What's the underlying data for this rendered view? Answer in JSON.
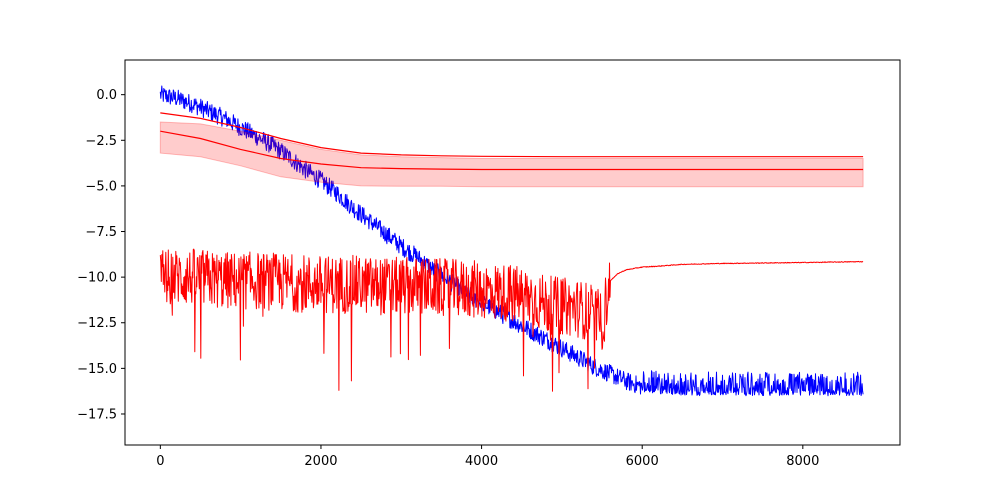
{
  "chart_data": {
    "type": "line",
    "title": "",
    "xlabel": "",
    "ylabel": "",
    "xlim": [
      -440,
      9210
    ],
    "ylim": [
      -19.2,
      1.9
    ],
    "grid": false,
    "x_ticks": [
      {
        "value": 0,
        "label": "0"
      },
      {
        "value": 2000,
        "label": "2000"
      },
      {
        "value": 4000,
        "label": "4000"
      },
      {
        "value": 6000,
        "label": "6000"
      },
      {
        "value": 8000,
        "label": "8000"
      }
    ],
    "y_ticks": [
      {
        "value": 0,
        "label": "0.0"
      },
      {
        "value": -2.5,
        "label": "−2.5"
      },
      {
        "value": -5,
        "label": "−5.0"
      },
      {
        "value": -7.5,
        "label": "−7.5"
      },
      {
        "value": -10,
        "label": "−10.0"
      },
      {
        "value": -12.5,
        "label": "−12.5"
      },
      {
        "value": -15,
        "label": "−15.0"
      },
      {
        "value": -17.5,
        "label": "−17.5"
      }
    ],
    "colors": {
      "blue_series": "#0000ff",
      "red_series": "#ff0000",
      "band_fill": "#ff0000"
    },
    "series": [
      {
        "kind": "line-noisy",
        "color": "#0000ff",
        "x": [
          0,
          200,
          400,
          600,
          800,
          1000,
          1200,
          1400,
          1600,
          1800,
          2000,
          2200,
          2400,
          2600,
          2800,
          3000,
          3200,
          3400,
          3600,
          3800,
          4000,
          4200,
          4400,
          4600,
          4800,
          5000,
          5200,
          5400,
          5600,
          5800,
          6000,
          6200,
          6600,
          7000,
          7400,
          7800,
          8200,
          8750
        ],
        "y": [
          0.0,
          -0.2,
          -0.5,
          -0.9,
          -1.3,
          -1.8,
          -2.3,
          -2.8,
          -3.4,
          -4.1,
          -4.7,
          -5.4,
          -6.2,
          -6.9,
          -7.6,
          -8.3,
          -8.9,
          -9.6,
          -10.2,
          -10.9,
          -11.4,
          -11.9,
          -12.4,
          -12.9,
          -13.4,
          -13.9,
          -14.4,
          -14.9,
          -15.3,
          -15.7,
          -16.0,
          -16.1,
          -16.2,
          -16.2,
          -16.2,
          -16.2,
          -16.2,
          -16.2
        ],
        "noise_amplitude": 0.5
      },
      {
        "kind": "line",
        "color": "#ff0000",
        "x": [
          0,
          500,
          1000,
          1500,
          2000,
          2500,
          3000,
          3500,
          4000,
          5000,
          6000,
          7000,
          8000,
          8750
        ],
        "y": [
          -1.0,
          -1.3,
          -1.8,
          -2.4,
          -2.9,
          -3.2,
          -3.3,
          -3.35,
          -3.38,
          -3.4,
          -3.4,
          -3.4,
          -3.4,
          -3.4
        ]
      },
      {
        "kind": "band",
        "color": "#ff0000",
        "x": [
          0,
          500,
          1000,
          1500,
          2000,
          2500,
          3000,
          3500,
          4000,
          5000,
          6000,
          7000,
          8000,
          8750
        ],
        "center": [
          -2.0,
          -2.4,
          -3.0,
          -3.5,
          -3.8,
          -4.0,
          -4.05,
          -4.08,
          -4.1,
          -4.1,
          -4.1,
          -4.1,
          -4.1,
          -4.1
        ],
        "lower": [
          -3.2,
          -3.4,
          -3.9,
          -4.5,
          -4.8,
          -5.0,
          -5.02,
          -5.02,
          -5.05,
          -5.05,
          -5.05,
          -5.05,
          -5.05,
          -5.05
        ],
        "upper": [
          -1.5,
          -1.6,
          -2.0,
          -2.5,
          -3.0,
          -3.3,
          -3.4,
          -3.45,
          -3.5,
          -3.5,
          -3.5,
          -3.5,
          -3.5,
          -3.5
        ]
      },
      {
        "kind": "line-noisy",
        "color": "#ff0000",
        "x": [
          0,
          400,
          800,
          1200,
          1600,
          2000,
          2400,
          2800,
          3200,
          3600,
          4000,
          4400,
          4600,
          4800,
          5000,
          5200,
          5400,
          5500,
          5600,
          5700,
          5800,
          6000,
          6200,
          6500,
          7000,
          8000,
          8750
        ],
        "y": [
          -10.0,
          -10.0,
          -10.2,
          -10.2,
          -10.3,
          -10.4,
          -10.4,
          -10.5,
          -10.5,
          -10.6,
          -10.7,
          -10.9,
          -11.1,
          -11.5,
          -11.6,
          -11.7,
          -12.0,
          -12.5,
          -10.2,
          -9.8,
          -9.6,
          -9.45,
          -9.4,
          -9.3,
          -9.25,
          -9.2,
          -9.15
        ],
        "noise_amplitude": 1.6
      }
    ]
  }
}
